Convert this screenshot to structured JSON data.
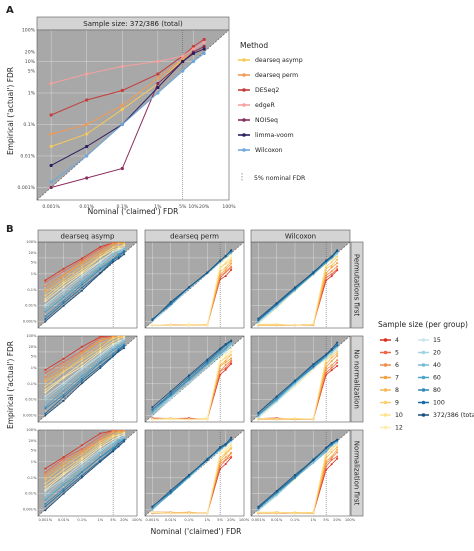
{
  "panel_a": {
    "label": "A",
    "strip": "Sample size: 372/386 (total)",
    "xlabel": "Nominal ('claimed') FDR",
    "ylabel": "Empirical ('actual') FDR",
    "ticks": [
      "0.001%",
      "0.01%",
      "0.1%",
      "1%",
      "5%",
      "10%",
      "20%",
      "100%"
    ],
    "tick_values": [
      0.001,
      0.01,
      0.1,
      1,
      5,
      10,
      20,
      100
    ],
    "legend_title": "Method",
    "nominal_label": "5% nominal FDR"
  },
  "panel_b": {
    "label": "B",
    "xlabel": "Nominal ('claimed') FDR",
    "ylabel": "Empirical ('actual') FDR",
    "cols": [
      "dearseq asymp",
      "dearseq perm",
      "Wilcoxon"
    ],
    "rows": [
      "Permutations first",
      "No normalization",
      "Normalization first"
    ],
    "legend_title": "Sample size (per group)",
    "ticks": [
      "0.001%",
      "0.01%",
      "0.1%",
      "1%",
      "5%",
      "20%",
      "100%"
    ],
    "tick_values": [
      0.001,
      0.01,
      0.1,
      1,
      5,
      20,
      100
    ]
  },
  "chart_data": [
    {
      "type": "line",
      "x": [
        0.001,
        0.01,
        0.1,
        1,
        5,
        10,
        20
      ],
      "xscale": "log",
      "yscale": "log",
      "xlim": [
        0.0004,
        100
      ],
      "ylim": [
        0.0004,
        100
      ],
      "series": [
        {
          "name": "dearseq asymp",
          "color": "#f6c95a",
          "values": [
            0.02,
            0.05,
            0.3,
            2,
            12,
            20,
            30
          ]
        },
        {
          "name": "dearseq perm",
          "color": "#f29b55",
          "values": [
            0.05,
            0.1,
            0.4,
            3,
            12,
            20,
            30
          ]
        },
        {
          "name": "DESeq2",
          "color": "#c43c3c",
          "values": [
            0.2,
            0.6,
            1.2,
            4,
            15,
            30,
            50
          ]
        },
        {
          "name": "edgeR",
          "color": "#f7a0a0",
          "values": [
            2,
            4,
            7,
            10,
            15,
            25,
            40
          ]
        },
        {
          "name": "NOISeq",
          "color": "#8a2d5d",
          "values": [
            0.001,
            0.002,
            0.004,
            2,
            10,
            20,
            30
          ]
        },
        {
          "name": "limma-voom",
          "color": "#2d1e5e",
          "values": [
            0.005,
            0.02,
            0.1,
            1.5,
            10,
            18,
            25
          ]
        },
        {
          "name": "Wilcoxon",
          "color": "#6fa8dc",
          "values": [
            0.0015,
            0.01,
            0.1,
            1,
            5,
            10,
            18
          ]
        }
      ]
    },
    {
      "type": "line",
      "x": [
        0.001,
        0.01,
        0.1,
        1,
        5,
        10,
        20
      ],
      "xscale": "log",
      "yscale": "log",
      "xlim": [
        0.0004,
        100
      ],
      "ylim": [
        0.0004,
        100
      ],
      "sample_sizes": [
        {
          "name": "4",
          "color": "#d7301f"
        },
        {
          "name": "5",
          "color": "#ef6548"
        },
        {
          "name": "6",
          "color": "#f08c4a"
        },
        {
          "name": "7",
          "color": "#f5a040"
        },
        {
          "name": "8",
          "color": "#f9b857"
        },
        {
          "name": "9",
          "color": "#fbcf6f"
        },
        {
          "name": "10",
          "color": "#fde28c"
        },
        {
          "name": "12",
          "color": "#fdedb0"
        },
        {
          "name": "15",
          "color": "#c8e6ee"
        },
        {
          "name": "20",
          "color": "#a0d3e3"
        },
        {
          "name": "40",
          "color": "#73bcd6"
        },
        {
          "name": "60",
          "color": "#4da3c8"
        },
        {
          "name": "80",
          "color": "#2e87b8"
        },
        {
          "name": "100",
          "color": "#1b6ca3"
        },
        {
          "name": "372/386 (total)",
          "color": "#1a4f7d"
        }
      ]
    }
  ]
}
